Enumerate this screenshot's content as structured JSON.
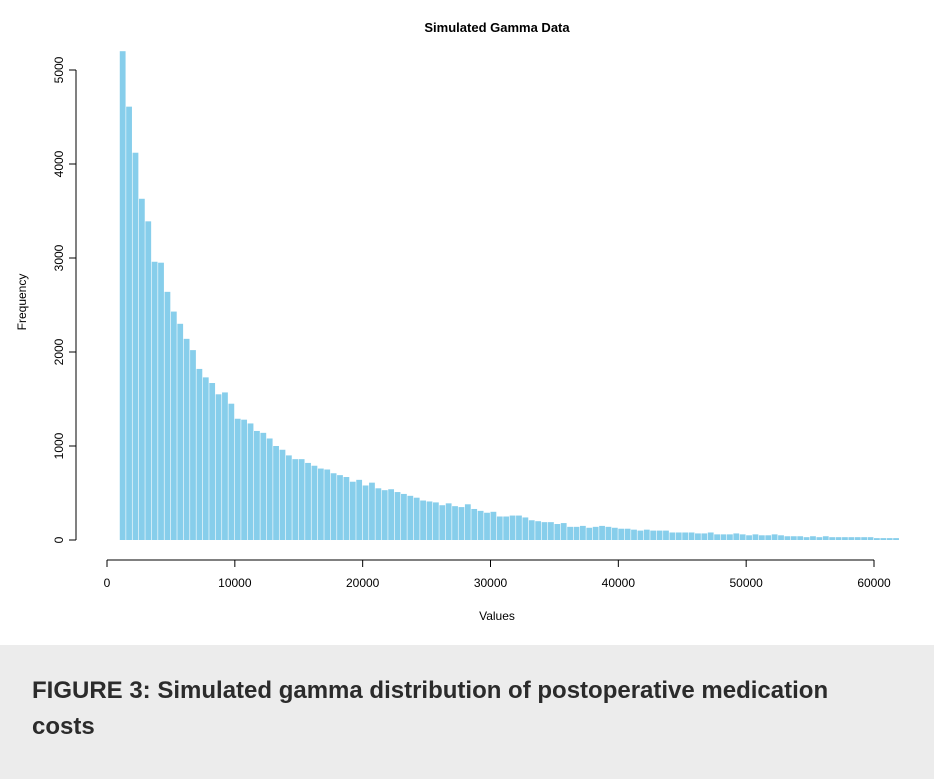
{
  "chart_data": {
    "type": "bar",
    "title": "Simulated Gamma Data",
    "xlabel": "Values",
    "ylabel": "Frequency",
    "xlim": [
      0,
      62000
    ],
    "ylim": [
      0,
      5200
    ],
    "x_ticks": [
      0,
      10000,
      20000,
      30000,
      40000,
      50000,
      60000
    ],
    "y_ticks": [
      0,
      1000,
      2000,
      3000,
      4000,
      5000
    ],
    "bin_width": 500,
    "bin_start": 1000,
    "bar_color": "#87ceeb",
    "values": [
      5200,
      4610,
      4120,
      3630,
      3390,
      2960,
      2950,
      2640,
      2430,
      2300,
      2140,
      2020,
      1820,
      1730,
      1670,
      1550,
      1570,
      1450,
      1290,
      1280,
      1240,
      1160,
      1140,
      1080,
      1000,
      960,
      900,
      860,
      860,
      820,
      790,
      760,
      750,
      710,
      690,
      670,
      620,
      640,
      580,
      610,
      550,
      530,
      540,
      510,
      490,
      470,
      450,
      420,
      410,
      400,
      370,
      390,
      360,
      350,
      380,
      330,
      310,
      290,
      300,
      250,
      250,
      260,
      260,
      240,
      210,
      200,
      190,
      190,
      170,
      180,
      140,
      140,
      150,
      130,
      140,
      150,
      140,
      130,
      120,
      120,
      110,
      100,
      110,
      100,
      100,
      100,
      80,
      80,
      80,
      80,
      70,
      70,
      80,
      60,
      60,
      60,
      70,
      60,
      50,
      60,
      50,
      50,
      60,
      50,
      40,
      40,
      40,
      30,
      40,
      30,
      40,
      30,
      30,
      30,
      30,
      30,
      30,
      30,
      20,
      20,
      20,
      20
    ]
  },
  "caption": {
    "text": "FIGURE 3: Simulated gamma distribution of postoperative medication costs"
  }
}
